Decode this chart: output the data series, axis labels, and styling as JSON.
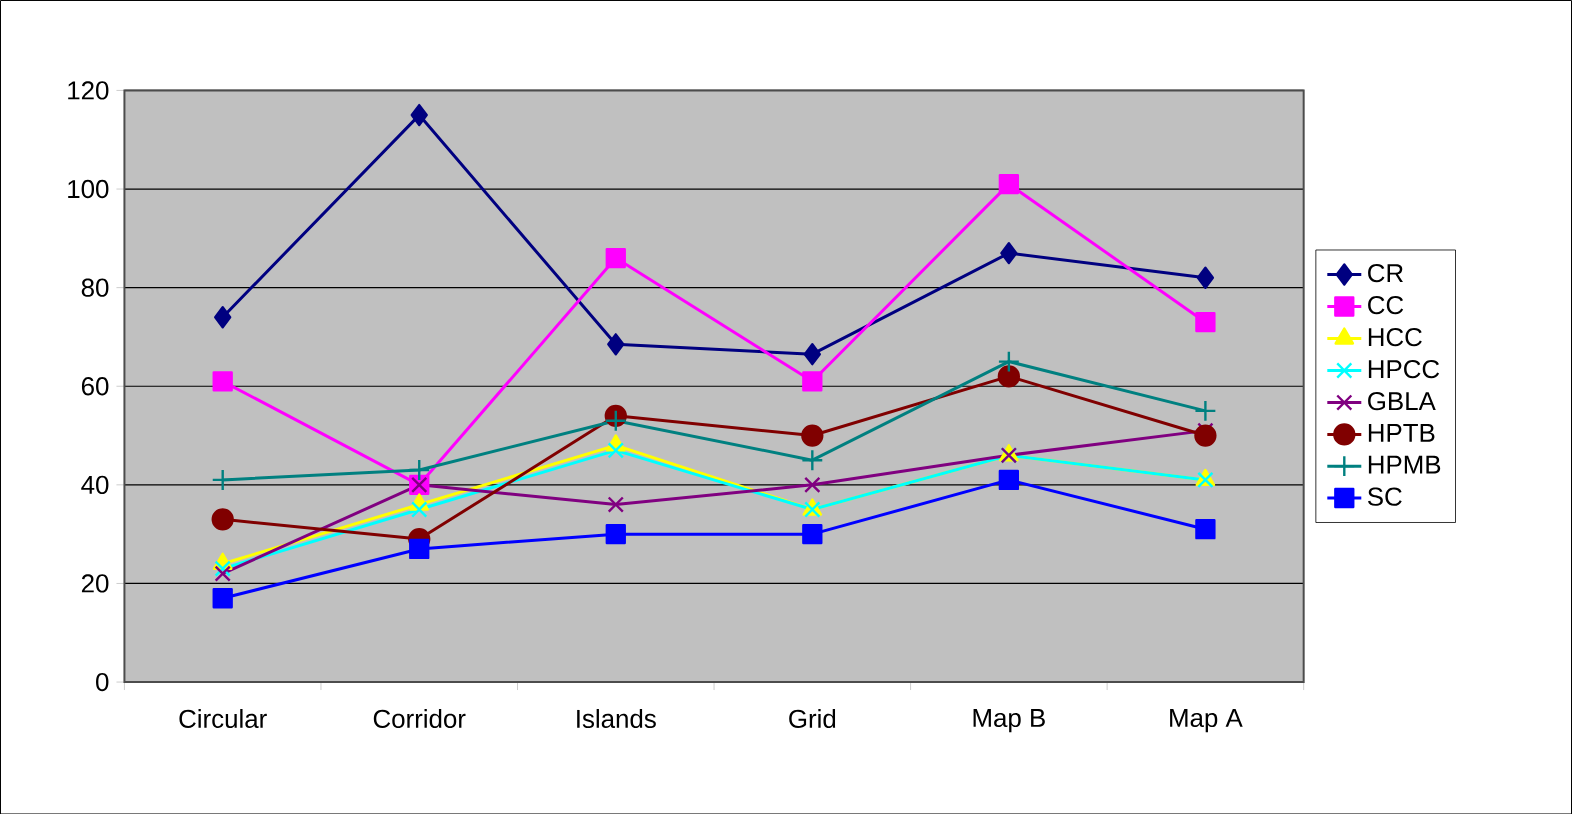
{
  "chart_data": {
    "type": "line",
    "categories": [
      "Circular",
      "Corridor",
      "Islands",
      "Grid",
      "Map B",
      "Map A"
    ],
    "ylim": [
      0,
      120
    ],
    "yticks": [
      0,
      20,
      40,
      60,
      80,
      100,
      120
    ],
    "grid": "y",
    "legend": "right",
    "series": [
      {
        "name": "CR",
        "color": "#000080",
        "marker": "diamond",
        "values": [
          74,
          115,
          68.5,
          66.5,
          87,
          82
        ]
      },
      {
        "name": "CC",
        "color": "#ff00ff",
        "marker": "square",
        "values": [
          61,
          40,
          86,
          61,
          101,
          73
        ]
      },
      {
        "name": "HCC",
        "color": "#ffff00",
        "marker": "triangle",
        "values": [
          24,
          36,
          48,
          35,
          46,
          41
        ]
      },
      {
        "name": "HPCC",
        "color": "#00ffff",
        "marker": "cross",
        "values": [
          23,
          35,
          47,
          35,
          46,
          41
        ]
      },
      {
        "name": "GBLA",
        "color": "#800080",
        "marker": "cross",
        "values": [
          22,
          40,
          36,
          40,
          46,
          51
        ]
      },
      {
        "name": "HPTB",
        "color": "#800000",
        "marker": "circle",
        "values": [
          33,
          29,
          54,
          50,
          62,
          50
        ]
      },
      {
        "name": "HPMB",
        "color": "#008080",
        "marker": "plus",
        "values": [
          41,
          43,
          53,
          45,
          65,
          55
        ]
      },
      {
        "name": "SC",
        "color": "#0000ff",
        "marker": "square",
        "values": [
          17,
          27,
          30,
          30,
          41,
          31
        ]
      }
    ]
  }
}
